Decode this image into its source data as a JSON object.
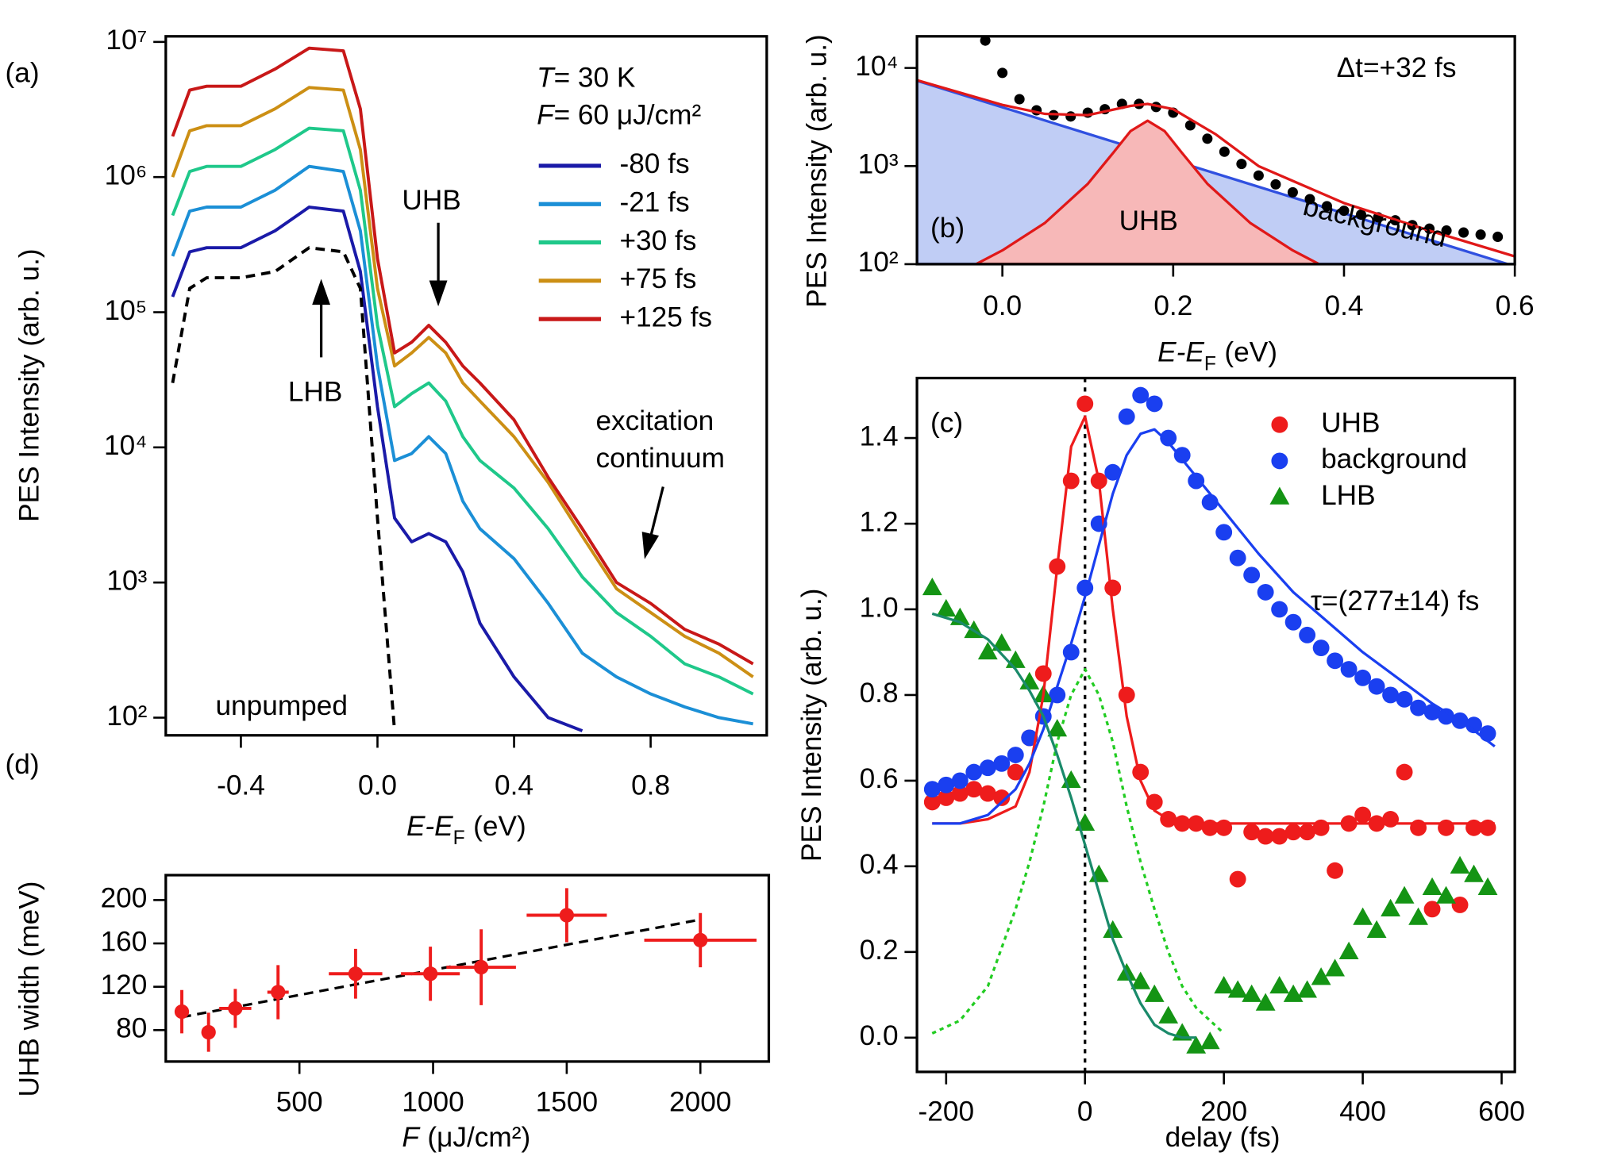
{
  "chart_data": [
    {
      "type": "line",
      "panel": "(a)",
      "ylabel": "PES Intensity (arb. u.)",
      "xlabel": {
        "var": "E-E",
        "sub": "F",
        "unit": "(eV)"
      },
      "log_y": true,
      "xlim": [
        -0.62,
        1.14
      ],
      "ylim": [
        74,
        11000000
      ],
      "xticks": [
        -0.4,
        {
          "value": 0,
          "label": "0.0"
        },
        0.4,
        0.8
      ],
      "yticks": [
        {
          "value": 100,
          "label": "10²"
        },
        {
          "value": 1000,
          "label": "10³"
        },
        {
          "value": 10000,
          "label": "10⁴"
        },
        {
          "value": 100000,
          "label": "10⁵"
        },
        {
          "value": 1000000,
          "label": "10⁶"
        },
        {
          "value": 10000000,
          "label": "10⁷"
        }
      ],
      "annotations": {
        "temp": {
          "var": "T",
          "text": "= 30 K"
        },
        "fluence": {
          "var": "F",
          "text": "= 60 μJ/cm²"
        },
        "uhb": "UHB",
        "lhb": "LHB",
        "continuum": [
          "excitation",
          "continuum"
        ],
        "unpumped": "unpumped"
      },
      "legend": "upper right",
      "x": [
        -0.6,
        -0.55,
        -0.5,
        -0.4,
        -0.3,
        -0.2,
        -0.1,
        -0.05,
        0,
        0.05,
        0.1,
        0.15,
        0.2,
        0.25,
        0.3,
        0.4,
        0.5,
        0.6,
        0.7,
        0.8,
        0.9,
        1.0,
        1.1
      ],
      "series": [
        {
          "name": "-80 fs",
          "style": "line",
          "color": "#1a1aa8",
          "values": [
            130000,
            280000,
            300000,
            300000,
            400000,
            600000,
            560000,
            200000,
            20000,
            3000,
            2000,
            2300,
            2000,
            1200,
            500,
            200,
            100,
            80,
            null,
            null,
            null,
            null,
            null
          ]
        },
        {
          "name": "-21 fs",
          "style": "line",
          "color": "#1b8fd6",
          "values": [
            260000,
            560000,
            600000,
            600000,
            800000,
            1200000,
            1100000,
            400000,
            40000,
            8000,
            9000,
            12000,
            9000,
            4000,
            2500,
            1500,
            700,
            300,
            200,
            150,
            120,
            100,
            90
          ]
        },
        {
          "name": "+30 fs",
          "style": "line",
          "color": "#1fc88a",
          "values": [
            520000,
            1100000,
            1200000,
            1200000,
            1600000,
            2300000,
            2200000,
            800000,
            80000,
            20000,
            25000,
            30000,
            22000,
            12000,
            8000,
            5000,
            2500,
            1100,
            600,
            400,
            250,
            200,
            150
          ]
        },
        {
          "name": "+75 fs",
          "style": "line",
          "color": "#cc8f14",
          "values": [
            1000000,
            2200000,
            2400000,
            2400000,
            3200000,
            4600000,
            4400000,
            1600000,
            150000,
            40000,
            50000,
            65000,
            50000,
            30000,
            22000,
            12000,
            5500,
            2200,
            900,
            600,
            400,
            300,
            200
          ]
        },
        {
          "name": "+125 fs",
          "style": "line",
          "color": "#c81818",
          "values": [
            2000000,
            4400000,
            4700000,
            4700000,
            6300000,
            9000000,
            8600000,
            3200000,
            250000,
            50000,
            60000,
            80000,
            60000,
            40000,
            30000,
            16000,
            6000,
            2500,
            1000,
            700,
            450,
            350,
            250
          ]
        },
        {
          "style": "dashed",
          "color": "#000000",
          "values": [
            30000,
            150000,
            180000,
            180000,
            200000,
            300000,
            280000,
            150000,
            3000,
            80,
            null,
            null,
            null,
            null,
            null,
            null,
            null,
            null,
            null,
            null,
            null,
            null,
            null
          ]
        }
      ]
    },
    {
      "type": "line",
      "panel": "(b)",
      "ylabel": "PES Intensity (arb. u.)",
      "xlabel": {
        "var": "E-E",
        "sub": "F",
        "unit": "(eV)"
      },
      "log_y": true,
      "xlim": [
        -0.1,
        0.6
      ],
      "ylim": [
        100,
        21000
      ],
      "xticks": [
        {
          "value": 0,
          "label": "0.0"
        },
        0.2,
        0.4,
        0.6
      ],
      "yticks": [
        {
          "value": 100,
          "label": "10²"
        },
        {
          "value": 1000,
          "label": "10³"
        },
        {
          "value": 10000,
          "label": "10⁴"
        }
      ],
      "annotations": {
        "delay": "Δt=+32 fs",
        "peak": "UHB",
        "background": "background"
      },
      "series": [
        {
          "style": "area",
          "color": "#3050e0",
          "fill": "#c0cdf5",
          "x": [
            -0.1,
            0.6
          ],
          "values": [
            7400,
            95
          ]
        },
        {
          "style": "area",
          "color": "#e01818",
          "fill": "#f7b8b8",
          "x": [
            -0.03,
            0.0,
            0.05,
            0.1,
            0.13,
            0.15,
            0.17,
            0.19,
            0.21,
            0.24,
            0.29,
            0.34,
            0.37
          ],
          "values": [
            101,
            138,
            264,
            660,
            1374,
            2271,
            2900,
            2271,
            1374,
            660,
            264,
            138,
            101
          ]
        },
        {
          "style": "markers",
          "marker": "circle",
          "size": 5,
          "color": "#000000",
          "x": [
            -0.02,
            0,
            0.02,
            0.04,
            0.06,
            0.08,
            0.1,
            0.12,
            0.14,
            0.16,
            0.18,
            0.2,
            0.22,
            0.24,
            0.26,
            0.28,
            0.3,
            0.32,
            0.34,
            0.36,
            0.38,
            0.4,
            0.42,
            0.44,
            0.46,
            0.48,
            0.5,
            0.52,
            0.54,
            0.56,
            0.58
          ],
          "values": [
            19000,
            8900,
            4800,
            3700,
            3300,
            3200,
            3500,
            3800,
            4300,
            4300,
            4000,
            3500,
            2600,
            1900,
            1400,
            1050,
            800,
            650,
            540,
            460,
            390,
            350,
            320,
            300,
            280,
            250,
            230,
            220,
            210,
            200,
            190
          ]
        },
        {
          "style": "line",
          "color": "#e01818",
          "x": [
            -0.1,
            0,
            0.05,
            0.1,
            0.15,
            0.17,
            0.2,
            0.25,
            0.3,
            0.4,
            0.5,
            0.6
          ],
          "values": [
            7500,
            4200,
            3400,
            3300,
            4100,
            4300,
            3800,
            2100,
            1000,
            420,
            220,
            120
          ]
        }
      ]
    },
    {
      "type": "scatter",
      "panel": "(c)",
      "ylabel": "PES Intensity (arb. u.)",
      "xlabel": "delay (fs)",
      "xlim": [
        -242,
        619
      ],
      "ylim": [
        -0.08,
        1.54
      ],
      "xticks": [
        -200,
        0,
        200,
        400,
        600
      ],
      "yticks": [
        {
          "value": 0,
          "label": "0.0"
        },
        0.2,
        0.4,
        0.6,
        0.8,
        {
          "value": 1,
          "label": "1.0"
        },
        1.2,
        1.4
      ],
      "annotations": {
        "tau": "τ=(277±14) fs"
      },
      "zero_line": 0,
      "legend": "upper right",
      "series": [
        {
          "style": "dotted",
          "color": "#22cc22",
          "x": [
            -220,
            -180,
            -140,
            -100,
            -80,
            -60,
            -40,
            -20,
            0,
            20,
            40,
            60,
            80,
            100,
            120,
            140,
            160,
            200,
            250,
            300,
            350,
            400,
            450,
            500,
            550,
            590
          ],
          "values": [
            0.01,
            0.04,
            0.12,
            0.3,
            0.41,
            0.54,
            0.69,
            0.8,
            0.86,
            0.8,
            0.69,
            0.54,
            0.41,
            0.3,
            0.2,
            0.12,
            0.07,
            0.01,
            null,
            null,
            null,
            null,
            null,
            null,
            null,
            null
          ]
        },
        {
          "name": "UHB",
          "style": "markers",
          "marker": "circle",
          "size": 8,
          "color": "#ee1c1c",
          "x": [
            -220,
            -200,
            -180,
            -160,
            -140,
            -120,
            -100,
            -80,
            -60,
            -40,
            -20,
            0,
            20,
            40,
            60,
            80,
            100,
            120,
            140,
            160,
            180,
            200,
            220,
            240,
            260,
            280,
            300,
            320,
            340,
            360,
            380,
            400,
            420,
            440,
            460,
            480,
            500,
            520,
            540,
            560,
            580
          ],
          "values": [
            0.55,
            0.56,
            0.57,
            0.58,
            0.57,
            0.56,
            0.62,
            0.7,
            0.85,
            1.1,
            1.3,
            1.48,
            1.3,
            1.05,
            0.8,
            0.62,
            0.55,
            0.51,
            0.5,
            0.5,
            0.49,
            0.49,
            0.37,
            0.48,
            0.47,
            0.47,
            0.48,
            0.48,
            0.49,
            0.39,
            0.5,
            0.52,
            0.5,
            0.51,
            0.62,
            0.49,
            0.3,
            0.49,
            0.31,
            0.49,
            0.49
          ]
        },
        {
          "name": "background",
          "style": "markers",
          "marker": "circle",
          "size": 8,
          "color": "#1a3ff0",
          "x": [
            -220,
            -200,
            -180,
            -160,
            -140,
            -120,
            -100,
            -80,
            -60,
            -40,
            -20,
            0,
            20,
            40,
            60,
            80,
            100,
            120,
            140,
            160,
            180,
            200,
            220,
            240,
            260,
            280,
            300,
            320,
            340,
            360,
            380,
            400,
            420,
            440,
            460,
            480,
            500,
            520,
            540,
            560,
            580
          ],
          "values": [
            0.58,
            0.59,
            0.6,
            0.62,
            0.63,
            0.64,
            0.66,
            0.7,
            0.75,
            0.8,
            0.9,
            1.05,
            1.2,
            1.32,
            1.45,
            1.5,
            1.48,
            1.4,
            1.36,
            1.3,
            1.25,
            1.18,
            1.12,
            1.08,
            1.04,
            1.0,
            0.97,
            0.94,
            0.91,
            0.88,
            0.86,
            0.84,
            0.82,
            0.8,
            0.79,
            0.77,
            0.76,
            0.75,
            0.74,
            0.73,
            0.71
          ]
        },
        {
          "name": "LHB",
          "style": "markers",
          "marker": "triangle",
          "size": 10,
          "color": "#149414",
          "x": [
            -220,
            -200,
            -180,
            -160,
            -140,
            -120,
            -100,
            -80,
            -60,
            -40,
            -20,
            0,
            20,
            40,
            60,
            80,
            100,
            120,
            140,
            160,
            180,
            200,
            220,
            240,
            260,
            280,
            300,
            320,
            340,
            360,
            380,
            400,
            420,
            440,
            460,
            480,
            500,
            520,
            540,
            560,
            580
          ],
          "values": [
            1.05,
            1.0,
            0.98,
            0.95,
            0.9,
            0.92,
            0.88,
            0.83,
            0.8,
            0.72,
            0.6,
            0.5,
            0.38,
            0.25,
            0.15,
            0.13,
            0.1,
            0.05,
            0.01,
            -0.02,
            -0.01,
            0.12,
            0.11,
            0.1,
            0.08,
            0.12,
            0.1,
            0.11,
            0.14,
            0.16,
            0.2,
            0.28,
            0.25,
            0.3,
            0.33,
            0.28,
            0.35,
            0.33,
            0.4,
            0.38,
            0.35
          ]
        },
        {
          "style": "line",
          "color": "#ee1c1c",
          "x": [
            -220,
            -180,
            -140,
            -100,
            -80,
            -60,
            -40,
            -20,
            0,
            20,
            40,
            60,
            80,
            100,
            120,
            140,
            160,
            200,
            250,
            300,
            350,
            400,
            450,
            500,
            550,
            590
          ],
          "values": [
            0.5,
            0.5,
            0.51,
            0.54,
            0.62,
            0.8,
            1.1,
            1.38,
            1.45,
            1.3,
            1.0,
            0.75,
            0.6,
            0.53,
            0.51,
            0.5,
            0.5,
            0.5,
            0.5,
            0.5,
            0.5,
            0.5,
            0.5,
            0.5,
            0.5,
            0.5
          ]
        },
        {
          "style": "line",
          "color": "#1a3ff0",
          "x": [
            -220,
            -180,
            -140,
            -100,
            -80,
            -60,
            -40,
            -20,
            0,
            20,
            40,
            60,
            80,
            100,
            120,
            140,
            160,
            200,
            250,
            300,
            350,
            400,
            450,
            500,
            550,
            590
          ],
          "values": [
            0.5,
            0.5,
            0.52,
            0.58,
            0.64,
            0.72,
            0.82,
            0.92,
            1.03,
            1.15,
            1.27,
            1.36,
            1.41,
            1.42,
            1.39,
            1.35,
            1.31,
            1.23,
            1.13,
            1.04,
            0.97,
            0.9,
            0.84,
            0.78,
            0.73,
            0.68
          ]
        },
        {
          "style": "line",
          "color": "#1a8a6a",
          "x": [
            -220,
            -180,
            -140,
            -100,
            -80,
            -60,
            -40,
            -20,
            0,
            20,
            40,
            60,
            80,
            100,
            120,
            140,
            160,
            200,
            250,
            300,
            350,
            400,
            450,
            500,
            550,
            590
          ],
          "values": [
            0.99,
            0.97,
            0.93,
            0.86,
            0.81,
            0.75,
            0.66,
            0.56,
            0.45,
            0.34,
            0.23,
            0.15,
            0.08,
            0.03,
            0.01,
            0.0,
            0.0,
            null,
            null,
            null,
            null,
            null,
            null,
            null,
            null,
            null
          ]
        }
      ]
    },
    {
      "type": "scatter",
      "panel": "(d)",
      "ylabel": "UHB width (meV)",
      "xlabel": {
        "var": "F",
        "unit": "(μJ/cm²)"
      },
      "xlim": [
        0,
        2256
      ],
      "ylim": [
        51,
        223
      ],
      "xticks": [
        500,
        1000,
        1500,
        2000
      ],
      "yticks": [
        80,
        120,
        160,
        200
      ],
      "series": [
        {
          "style": "dashed",
          "color": "#000000",
          "x": [
            60,
            2000
          ],
          "values": [
            92,
            182
          ]
        },
        {
          "style": "markers",
          "marker": "circle",
          "size": 7,
          "color": "#ee1c1c",
          "x": [
            60,
            160,
            260,
            420,
            710,
            990,
            1180,
            1500,
            2000
          ],
          "values": [
            97,
            78,
            100,
            115,
            132,
            132,
            138,
            186,
            163
          ],
          "xerr": [
            0,
            0,
            60,
            40,
            100,
            110,
            130,
            150,
            210
          ],
          "yerr": [
            20,
            18,
            18,
            25,
            23,
            25,
            35,
            25,
            25
          ]
        }
      ]
    }
  ]
}
